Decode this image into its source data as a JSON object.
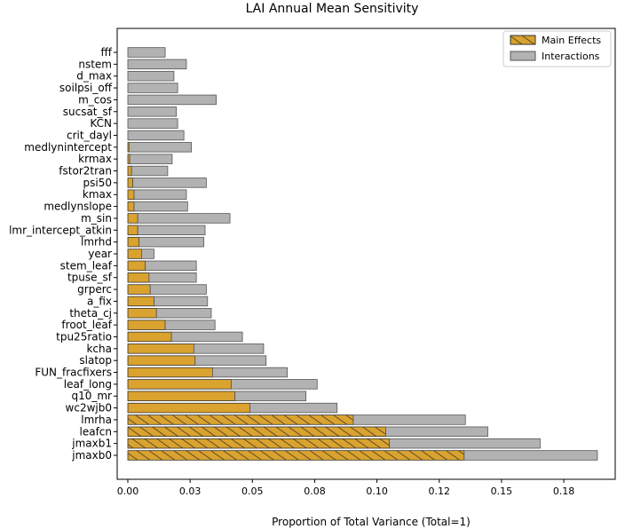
{
  "chart_data": {
    "type": "bar",
    "orientation": "horizontal",
    "stacked": true,
    "title": "LAI Annual Mean Sensitivity",
    "xlabel": "Proportion of Total Variance (Total=1)",
    "ylabel": "",
    "xlim": [
      0,
      0.196
    ],
    "xticks": [
      "0.00",
      "0.03",
      "0.05",
      "0.08",
      "0.10",
      "0.12",
      "0.15",
      "0.18"
    ],
    "xtick_values": [
      0,
      0.025,
      0.05,
      0.075,
      0.1,
      0.125,
      0.15,
      0.175
    ],
    "grid": false,
    "legend_position": "top-right",
    "categories": [
      "fff",
      "nstem",
      "d_max",
      "soilpsi_off",
      "m_cos",
      "sucsat_sf",
      "KCN",
      "crit_dayl",
      "medlynintercept",
      "krmax",
      "fstor2tran",
      "psi50",
      "kmax",
      "medlynslope",
      "m_sin",
      "lmr_intercept_atkin",
      "lmrhd",
      "year",
      "stem_leaf",
      "tpuse_sf",
      "grperc",
      "a_fix",
      "theta_cj",
      "froot_leaf",
      "tpu25ratio",
      "kcha",
      "slatop",
      "FUN_fracfixers",
      "leaf_long",
      "q10_mr",
      "wc2wjb0",
      "lmrha",
      "leafcn",
      "jmaxb1",
      "jmaxb0"
    ],
    "series": [
      {
        "name": "Main Effects",
        "color": "#daa22e",
        "hatch": "diagonal",
        "values": [
          0.0,
          0.0,
          0.0,
          0.0,
          0.0,
          0.0,
          0.0,
          0.0,
          0.0005,
          0.0008,
          0.0015,
          0.002,
          0.0025,
          0.0025,
          0.004,
          0.004,
          0.0045,
          0.0055,
          0.007,
          0.0085,
          0.009,
          0.0105,
          0.0115,
          0.015,
          0.0175,
          0.0265,
          0.027,
          0.034,
          0.0415,
          0.043,
          0.049,
          0.0905,
          0.1035,
          0.105,
          0.135
        ]
      },
      {
        "name": "Interactions",
        "color": "#b2b2b2",
        "values": [
          0.015,
          0.0235,
          0.0185,
          0.02,
          0.0355,
          0.0195,
          0.02,
          0.0225,
          0.025,
          0.017,
          0.0145,
          0.0295,
          0.021,
          0.0215,
          0.037,
          0.027,
          0.026,
          0.005,
          0.0205,
          0.019,
          0.0225,
          0.0215,
          0.022,
          0.02,
          0.0285,
          0.028,
          0.0285,
          0.03,
          0.0345,
          0.0285,
          0.035,
          0.045,
          0.041,
          0.0605,
          0.0535
        ]
      }
    ]
  }
}
